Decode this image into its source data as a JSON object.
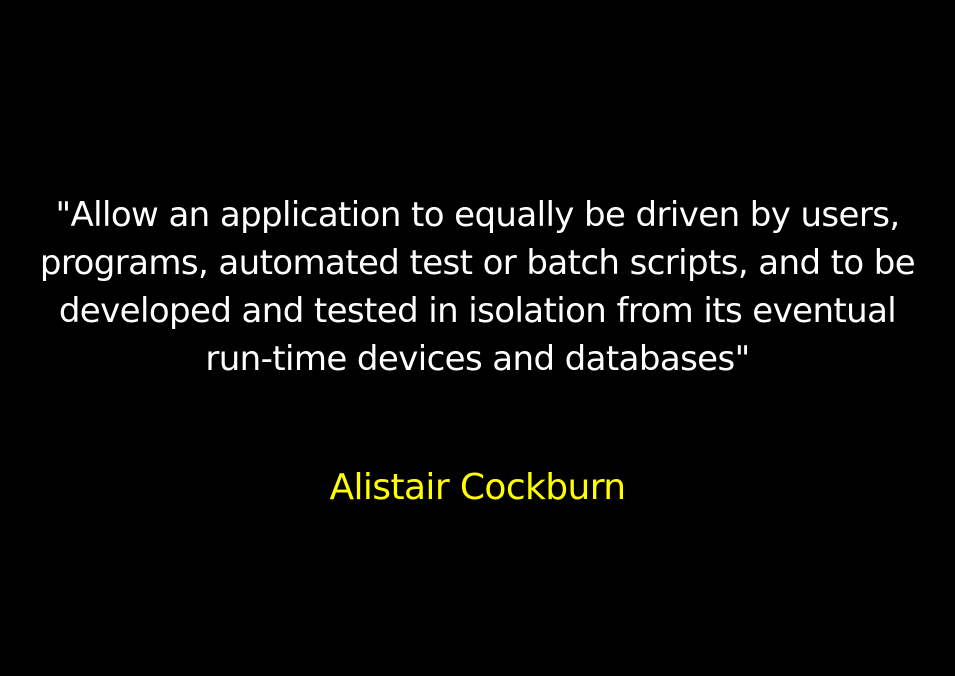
{
  "quote": {
    "lines": [
      "\"Allow an application to equally be driven by users,",
      "programs, automated test or batch scripts, and to be",
      "developed and tested in isolation from its eventual",
      "run-time devices and databases\""
    ]
  },
  "author": "Alistair Cockburn",
  "colors": {
    "background": "#000000",
    "quote_text": "#ffffff",
    "author_text": "#ffff00"
  }
}
